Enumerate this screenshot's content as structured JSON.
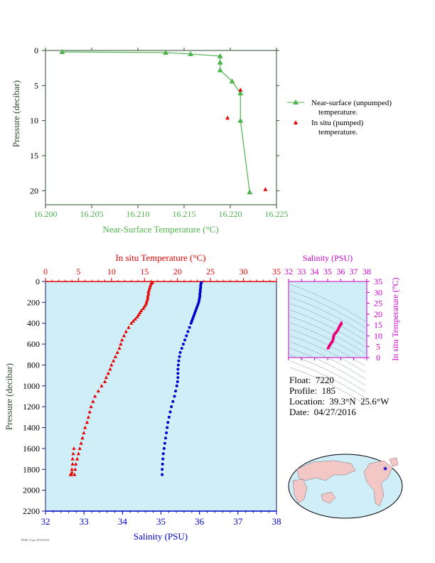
{
  "top_chart": {
    "xlabel": "Near-Surface Temperature (°C)",
    "ylabel": "Pressure (decibar)",
    "x_ticks": [
      "16.200",
      "16.205",
      "16.210",
      "16.215",
      "16.220",
      "16.225"
    ],
    "y_ticks": [
      "0",
      "5",
      "10",
      "15",
      "20"
    ],
    "legend": {
      "near_surface_line1": "Near-surface (unpumped)",
      "near_surface_line2": "temperature.",
      "in_situ_line1": "In situ (pumped)",
      "in_situ_line2": "temperature."
    },
    "colors": {
      "near_surface": "#4db34d",
      "in_situ": "#e60000",
      "axis_text": "#4db34d",
      "ylabel": "#2d4d2d"
    }
  },
  "bottom_chart": {
    "top_xlabel": "In situ Temperature (°C)",
    "bottom_xlabel": "Salinity (PSU)",
    "ylabel": "Pressure (decibar)",
    "temp_ticks": [
      "0",
      "5",
      "10",
      "15",
      "20",
      "25",
      "30",
      "35"
    ],
    "sal_ticks": [
      "32",
      "33",
      "34",
      "35",
      "36",
      "37",
      "38"
    ],
    "p_ticks": [
      "0",
      "200",
      "400",
      "600",
      "800",
      "1000",
      "1200",
      "1400",
      "1600",
      "1800",
      "2000",
      "2200"
    ],
    "colors": {
      "background": "#d0eef8",
      "temperature": "#e60000",
      "salinity": "#0000cc"
    }
  },
  "ts_inset": {
    "xlabel": "Salinity (PSU)",
    "ylabel": "In situ Temperature (°C)",
    "x_ticks": [
      "32",
      "33",
      "34",
      "35",
      "36",
      "37",
      "38"
    ],
    "y_ticks": [
      "0",
      "5",
      "10",
      "15",
      "20",
      "25",
      "30",
      "35"
    ],
    "color": "#cc00cc"
  },
  "info": {
    "float": "Float:  7220",
    "profile": "Profile:  185",
    "location": "Location:  39.3°N  25.6°W",
    "date": "Date:  04/27/2016"
  },
  "footer": "PMEL/Argo 2016/04/28",
  "chart_data": [
    {
      "type": "line",
      "series": [
        {
          "name": "Near-surface (unpumped) temperature.",
          "x": [
            16.2018,
            16.213,
            16.2157,
            16.2189,
            16.2189,
            16.2189,
            16.2202,
            16.2211,
            16.2211,
            16.2221
          ],
          "y": [
            0.2,
            0.3,
            0.5,
            0.8,
            1.7,
            2.8,
            4.4,
            6.1,
            10.0,
            20.2
          ]
        },
        {
          "name": "In situ (pumped) temperature.",
          "x": [
            16.2211,
            16.2197,
            16.2238
          ],
          "y": [
            5.6,
            9.6,
            19.8
          ]
        }
      ],
      "xlim": [
        16.2,
        16.225
      ],
      "ylim": [
        22,
        0
      ]
    },
    {
      "type": "scatter",
      "series": [
        {
          "name": "In situ Temperature (°C)",
          "x": [
            16.2,
            16.0,
            15.9,
            15.8,
            15.7,
            15.6,
            15.6,
            15.5,
            15.5,
            15.4,
            15.3,
            15.2,
            15.0,
            14.8,
            14.5,
            14.3,
            14.1,
            13.9,
            13.6,
            13.3,
            13.0,
            12.6,
            12.2,
            11.9,
            11.6,
            11.4,
            11.2,
            10.9,
            10.6,
            10.3,
            10.0,
            9.8,
            9.5,
            9.2,
            9.0,
            8.5,
            8.0,
            7.5,
            7.2,
            6.9,
            6.7,
            6.5,
            6.3,
            6.0,
            5.8,
            5.6,
            5.4,
            5.2,
            5.0,
            4.8,
            4.6,
            4.5,
            4.4,
            4.3,
            4.2,
            4.1,
            4.1,
            4.0,
            4.0,
            3.9,
            3.8,
            3.8
          ],
          "y": [
            10,
            20,
            40,
            60,
            80,
            100,
            120,
            140,
            160,
            180,
            200,
            220,
            240,
            260,
            280,
            300,
            320,
            340,
            360,
            380,
            400,
            440,
            480,
            520,
            560,
            600,
            640,
            680,
            720,
            760,
            800,
            840,
            880,
            920,
            960,
            1000,
            1050,
            1100,
            1150,
            1200,
            1250,
            1300,
            1350,
            1400,
            1450,
            1500,
            1550,
            1600,
            1650,
            1700,
            1750,
            1800,
            1850,
            1600,
            1650,
            1700,
            1750,
            1800,
            1830,
            1850,
            1850,
            1850
          ]
        },
        {
          "name": "Salinity (PSU)",
          "x": [
            36.05,
            36.04,
            36.03,
            36.03,
            36.02,
            36.02,
            36.01,
            36.01,
            36.0,
            35.99,
            35.98,
            35.96,
            35.94,
            35.92,
            35.9,
            35.88,
            35.86,
            35.84,
            35.82,
            35.8,
            35.78,
            35.74,
            35.7,
            35.66,
            35.62,
            35.58,
            35.54,
            35.5,
            35.48,
            35.46,
            35.45,
            35.44,
            35.44,
            35.44,
            35.43,
            35.41,
            35.38,
            35.35,
            35.31,
            35.27,
            35.24,
            35.21,
            35.18,
            35.16,
            35.14,
            35.12,
            35.1,
            35.08,
            35.06,
            35.05,
            35.04,
            35.03,
            35.03
          ],
          "y": [
            10,
            20,
            40,
            60,
            80,
            100,
            120,
            140,
            160,
            180,
            200,
            220,
            240,
            260,
            280,
            300,
            320,
            340,
            360,
            380,
            400,
            440,
            480,
            520,
            560,
            600,
            640,
            680,
            720,
            760,
            800,
            840,
            880,
            920,
            960,
            1000,
            1050,
            1100,
            1150,
            1200,
            1250,
            1300,
            1350,
            1400,
            1450,
            1500,
            1550,
            1600,
            1650,
            1700,
            1750,
            1800,
            1850
          ]
        }
      ],
      "temp_lim": [
        0,
        35
      ],
      "sal_lim": [
        32,
        38
      ],
      "ylim": [
        2200,
        0
      ]
    }
  ]
}
